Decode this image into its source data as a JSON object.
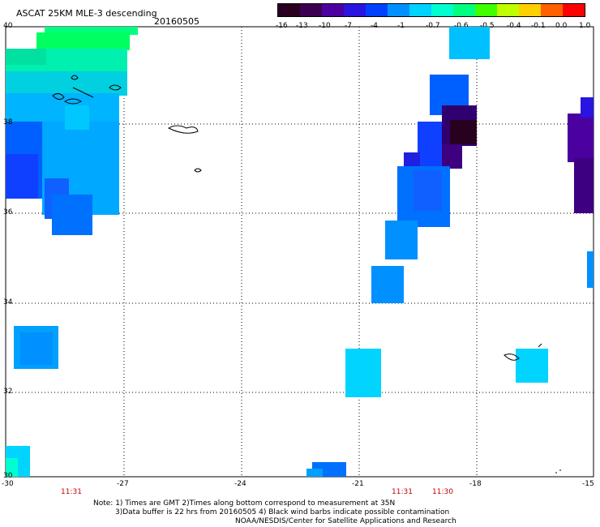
{
  "header": {
    "title": "ASCAT 25KM MLE-3 descending",
    "date": "20160505"
  },
  "colorbar": {
    "labels": [
      "-16",
      "-13",
      "-10",
      "-7",
      "-4",
      "-1",
      "-0.7",
      "-0.6",
      "-0.5",
      "-0.4",
      "-0.1",
      "0.0",
      "1.0"
    ],
    "colors": [
      "#280020",
      "#3c0050",
      "#4b00a0",
      "#2a14e0",
      "#0040ff",
      "#0090ff",
      "#00d2ff",
      "#00ffd0",
      "#00ff80",
      "#40ff00",
      "#c0ff00",
      "#ffd000",
      "#ff6000",
      "#ff0000"
    ]
  },
  "axes": {
    "x_ticks": [
      "-30",
      "-27",
      "-24",
      "-21",
      "-18",
      "-15"
    ],
    "y_ticks": [
      "40",
      "38",
      "36",
      "34",
      "32",
      "30"
    ]
  },
  "times": [
    "11:31",
    "11:31",
    "11:30"
  ],
  "notes": {
    "line1": "Note: 1) Times are GMT 2)Times along bottom correspond to measurement at 35N",
    "line2": "3)Data buffer is 22 hrs from 20160505 4) Black wind barbs indicate possible contamination",
    "line3": "NOAA/NESDIS/Center for Satellite Applications and Research"
  }
}
